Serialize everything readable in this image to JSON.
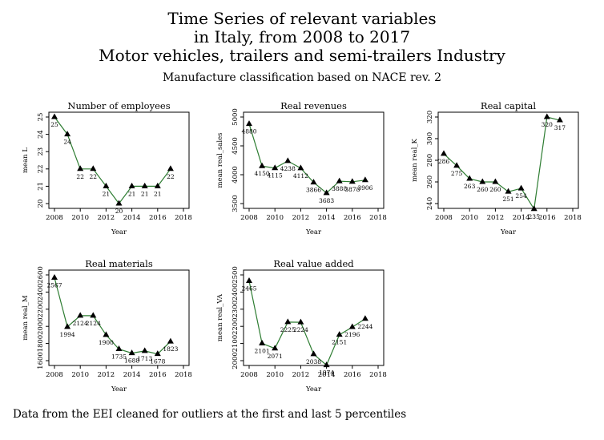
{
  "title_lines": [
    "Time Series of relevant variables",
    "in Italy, from 2008 to 2017",
    "Motor vehicles, trailers and semi-trailers Industry"
  ],
  "subtitle": "Manufacture classification based on NACE rev. 2",
  "footer": "Data from the EEI cleaned for outliers at the first and last 5 percentiles",
  "colors": {
    "line": "#2e7d32",
    "marker": "#000000",
    "frame": "#000000"
  },
  "chart_data": [
    {
      "type": "line",
      "title": "Number of employees",
      "xlabel": "Year",
      "ylabel": "mean L",
      "x": [
        2008,
        2009,
        2010,
        2011,
        2012,
        2013,
        2014,
        2015,
        2016,
        2017
      ],
      "values": [
        25,
        24,
        22,
        22,
        21,
        20,
        21,
        21,
        21,
        22
      ],
      "labels": [
        "25",
        "24",
        "22",
        "22",
        "21",
        "20",
        "21",
        "21",
        "21",
        "22"
      ],
      "xlim": [
        2008,
        2018
      ],
      "xticks": [
        "2008",
        "2010",
        "2012",
        "2014",
        "2016",
        "2018"
      ],
      "ylim": [
        20,
        25
      ],
      "yticks": [
        20,
        21,
        22,
        23,
        24,
        25
      ],
      "ytick_labels": [
        "20",
        "21",
        "22",
        "23",
        "24",
        "25"
      ],
      "marker": "triangle",
      "grid": false
    },
    {
      "type": "line",
      "title": "Real revenues",
      "xlabel": "Year",
      "ylabel": "mean real_sales",
      "x": [
        2008,
        2009,
        2010,
        2011,
        2012,
        2013,
        2014,
        2015,
        2016,
        2017
      ],
      "values": [
        4880,
        4150,
        4115,
        4238,
        4112,
        3866,
        3683,
        3888,
        3878,
        3906
      ],
      "labels": [
        "4880",
        "4150",
        "4115",
        "4238",
        "4112",
        "3866",
        "3683",
        "3888",
        "3878",
        "3906"
      ],
      "xlim": [
        2008,
        2018
      ],
      "xticks": [
        "2008",
        "2010",
        "2012",
        "2014",
        "2016",
        "2018"
      ],
      "ylim": [
        3500,
        5000
      ],
      "yticks": [
        3500,
        4000,
        4500,
        5000
      ],
      "ytick_labels": [
        "3500",
        "4000",
        "4500",
        "5000"
      ],
      "marker": "triangle",
      "grid": false
    },
    {
      "type": "line",
      "title": "Real capital",
      "xlabel": "Year",
      "ylabel": "mean real_K",
      "x": [
        2008,
        2009,
        2010,
        2011,
        2012,
        2013,
        2014,
        2015,
        2016,
        2017
      ],
      "values": [
        286,
        275,
        263,
        260,
        260,
        251,
        254,
        235,
        320,
        317
      ],
      "labels": [
        "286",
        "275",
        "263",
        "260",
        "260",
        "251",
        "254",
        "235",
        "320",
        "317"
      ],
      "xlim": [
        2008,
        2018
      ],
      "xticks": [
        "2008",
        "2010",
        "2012",
        "2014",
        "2016",
        "2018"
      ],
      "ylim": [
        240,
        320
      ],
      "yticks": [
        240,
        260,
        280,
        300,
        320
      ],
      "ytick_labels": [
        "240",
        "260",
        "280",
        "300",
        "320"
      ],
      "marker": "triangle",
      "grid": false
    },
    {
      "type": "line",
      "title": "Real materials",
      "xlabel": "Year",
      "ylabel": "mean real_M",
      "x": [
        2008,
        2009,
        2010,
        2011,
        2012,
        2013,
        2014,
        2015,
        2016,
        2017
      ],
      "values": [
        2567,
        1994,
        2124,
        2124,
        1900,
        1735,
        1688,
        1713,
        1678,
        1823
      ],
      "labels": [
        "2567",
        "1994",
        "2124",
        "2124",
        "1900",
        "1735",
        "1688",
        "1713",
        "1678",
        "1823"
      ],
      "xlim": [
        2008,
        2018
      ],
      "xticks": [
        "2008",
        "2010",
        "2012",
        "2014",
        "2016",
        "2018"
      ],
      "ylim": [
        1600,
        2600
      ],
      "yticks": [
        1600,
        1800,
        2000,
        2200,
        2400,
        2600
      ],
      "ytick_labels": [
        "1600",
        "1800",
        "2000",
        "2200",
        "2400",
        "2600"
      ],
      "marker": "triangle",
      "grid": false
    },
    {
      "type": "line",
      "title": "Real value added",
      "xlabel": "Year",
      "ylabel": "mean real_VA",
      "x": [
        2008,
        2009,
        2010,
        2011,
        2012,
        2013,
        2014,
        2015,
        2016,
        2017
      ],
      "values": [
        2465,
        2101,
        2071,
        2225,
        2224,
        2038,
        1974,
        2151,
        2196,
        2244
      ],
      "labels": [
        "2465",
        "2101",
        "2071",
        "2225",
        "2224",
        "2038",
        "1974",
        "2151",
        "2196",
        "2244"
      ],
      "xlim": [
        2008,
        2018
      ],
      "xticks": [
        "2008",
        "2010",
        "2012",
        "2014",
        "2016",
        "2018"
      ],
      "ylim": [
        2000,
        2500
      ],
      "yticks": [
        2000,
        2100,
        2200,
        2300,
        2400,
        2500
      ],
      "ytick_labels": [
        "2000",
        "2100",
        "2200",
        "2300",
        "2400",
        "2500"
      ],
      "marker": "triangle",
      "grid": false
    }
  ]
}
